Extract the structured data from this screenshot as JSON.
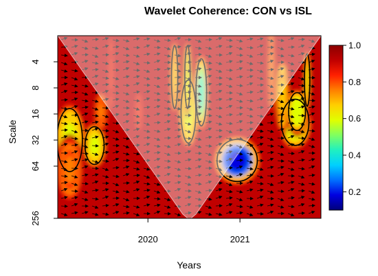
{
  "chart_data": {
    "type": "heatmap",
    "title": "Wavelet Coherence: CON vs ISL",
    "xlabel": "Years",
    "ylabel": "Scale",
    "x_ticks": [
      {
        "label": "2020",
        "value": 2020
      },
      {
        "label": "2021",
        "value": 2021
      }
    ],
    "xlim": [
      2019.02,
      2021.88
    ],
    "y_scale": "log2",
    "y_ticks": [
      {
        "label": "4",
        "value": 4
      },
      {
        "label": "8",
        "value": 8
      },
      {
        "label": "16",
        "value": 16
      },
      {
        "label": "32",
        "value": 32
      },
      {
        "label": "64",
        "value": 64
      },
      {
        "label": "256",
        "value": 256
      }
    ],
    "ylim": [
      2,
      256
    ],
    "y_reversed": true,
    "colorbar": {
      "range": [
        0.1,
        1.0
      ],
      "ticks": [
        {
          "label": "0.2",
          "value": 0.2
        },
        {
          "label": "0.4",
          "value": 0.4
        },
        {
          "label": "0.6",
          "value": 0.6
        },
        {
          "label": "0.8",
          "value": 0.8
        },
        {
          "label": "1.0",
          "value": 1.0
        }
      ],
      "colors": [
        "#00007a",
        "#0000e0",
        "#0070ff",
        "#00d0ff",
        "#20f0c0",
        "#80ff60",
        "#e0ff00",
        "#ffd000",
        "#ff8000",
        "#ff2000",
        "#c00000",
        "#8c0000"
      ]
    },
    "background_coherence": 0.95,
    "coherence_features": [
      {
        "year": 2020.58,
        "scale": 9,
        "wx": 0.05,
        "wy": 0.32,
        "coherence": 0.45
      },
      {
        "year": 2020.44,
        "scale": 15,
        "wx": 0.07,
        "wy": 0.3,
        "coherence": 0.6
      },
      {
        "year": 2020.97,
        "scale": 55,
        "wx": 0.19,
        "wy": 0.2,
        "coherence": 0.22
      },
      {
        "year": 2021.6,
        "scale": 20,
        "wx": 0.13,
        "wy": 0.22,
        "coherence": 0.48
      },
      {
        "year": 2021.62,
        "scale": 15,
        "wx": 0.08,
        "wy": 0.18,
        "coherence": 0.55
      },
      {
        "year": 2019.42,
        "scale": 37,
        "wx": 0.09,
        "wy": 0.18,
        "coherence": 0.62
      },
      {
        "year": 2019.15,
        "scale": 32,
        "wx": 0.12,
        "wy": 0.3,
        "coherence": 0.6
      },
      {
        "year": 2019.49,
        "scale": 15,
        "wx": 0.05,
        "wy": 0.15,
        "coherence": 0.72
      },
      {
        "year": 2019.15,
        "scale": 70,
        "wx": 0.1,
        "wy": 0.25,
        "coherence": 0.75
      },
      {
        "year": 2020.29,
        "scale": 6,
        "wx": 0.03,
        "wy": 0.3,
        "coherence": 0.65
      },
      {
        "year": 2020.43,
        "scale": 6,
        "wx": 0.025,
        "wy": 0.3,
        "coherence": 0.55
      },
      {
        "year": 2019.6,
        "scale": 5.5,
        "wx": 0.02,
        "wy": 0.3,
        "coherence": 0.8
      },
      {
        "year": 2021.34,
        "scale": 5,
        "wx": 0.025,
        "wy": 0.35,
        "coherence": 0.78
      },
      {
        "year": 2021.73,
        "scale": 6.5,
        "wx": 0.025,
        "wy": 0.25,
        "coherence": 0.6
      },
      {
        "year": 2019.9,
        "scale": 15,
        "wx": 0.03,
        "wy": 0.15,
        "coherence": 0.82
      },
      {
        "year": 2021.46,
        "scale": 10,
        "wx": 0.05,
        "wy": 0.3,
        "coherence": 0.7
      }
    ]
  }
}
